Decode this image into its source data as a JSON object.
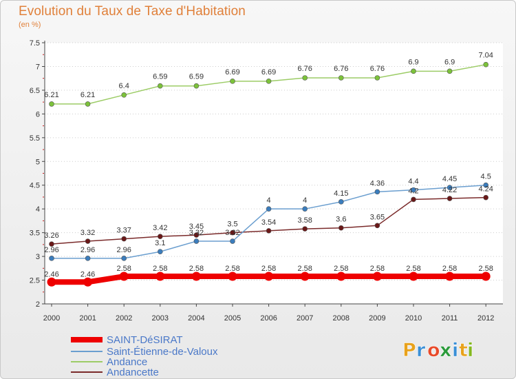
{
  "title": "Evolution du Taux de Taxe d'Habitation",
  "subtitle": "(en %)",
  "brand": {
    "letters": [
      "P",
      "r",
      "o",
      "x",
      "i",
      "t",
      "i"
    ],
    "colors": [
      "#e8a21c",
      "#3a8fd6",
      "#e84a2a",
      "#2a9a3a",
      "#3a8fd6",
      "#e8a21c",
      "#84b820"
    ]
  },
  "chart_data": {
    "type": "line",
    "title": "Evolution du Taux de Taxe d'Habitation",
    "ylabel": "(en %)",
    "x": [
      "2000",
      "2001",
      "2002",
      "2003",
      "2004",
      "2005",
      "2006",
      "2007",
      "2008",
      "2009",
      "2010",
      "2011",
      "2012"
    ],
    "ylim": [
      2,
      7.5
    ],
    "yticks": [
      "2",
      "2.5",
      "3",
      "3.5",
      "4",
      "4.5",
      "5",
      "5.5",
      "6",
      "6.5",
      "7",
      "7.5"
    ],
    "legend_position": "bottom-left",
    "series": [
      {
        "name": "SAINT-DéSIRAT",
        "color": "#ee0000",
        "values": [
          2.46,
          2.46,
          2.58,
          2.58,
          2.58,
          2.58,
          2.58,
          2.58,
          2.58,
          2.58,
          2.58,
          2.58,
          2.58
        ],
        "labels": [
          "2.46",
          "2.46",
          "2.58",
          "2.58",
          "2.58",
          "2.58",
          "2.58",
          "2.58",
          "2.58",
          "2.58",
          "2.58",
          "2.58",
          "2.58"
        ]
      },
      {
        "name": "Saint-Étienne-de-Valoux",
        "color": "#6a9ecf",
        "values": [
          2.96,
          2.96,
          2.96,
          3.1,
          3.32,
          3.32,
          4,
          4,
          4.15,
          4.36,
          4.4,
          4.45,
          4.5
        ],
        "labels": [
          "2.96",
          "2.96",
          "2.96",
          "3.1",
          "3.32",
          "3.32",
          "4",
          "4",
          "4.15",
          "4.36",
          "4.4",
          "4.45",
          "4.5"
        ]
      },
      {
        "name": "Andance",
        "color": "#9ccc66",
        "values": [
          6.21,
          6.21,
          6.4,
          6.59,
          6.59,
          6.69,
          6.69,
          6.76,
          6.76,
          6.76,
          6.9,
          6.9,
          7.04
        ],
        "labels": [
          "6.21",
          "6.21",
          "6.4",
          "6.59",
          "6.59",
          "6.69",
          "6.69",
          "6.76",
          "6.76",
          "6.76",
          "6.9",
          "6.9",
          "7.04"
        ]
      },
      {
        "name": "Andancette",
        "color": "#7a2a2a",
        "values": [
          3.26,
          3.32,
          3.37,
          3.42,
          3.45,
          3.5,
          3.54,
          3.58,
          3.6,
          3.65,
          4.2,
          4.22,
          4.24
        ],
        "labels": [
          "3.26",
          "3.32",
          "3.37",
          "3.42",
          "3.45",
          "3.5",
          "3.54",
          "3.58",
          "3.6",
          "3.65",
          "4.2",
          "4.22",
          "4.24"
        ]
      }
    ]
  }
}
